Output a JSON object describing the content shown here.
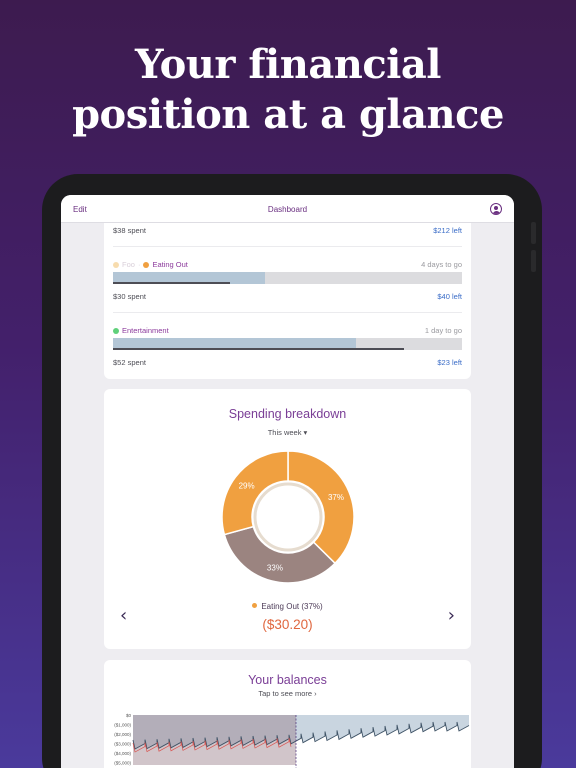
{
  "hero": {
    "line1": "Your financial",
    "line2": "position at a glance"
  },
  "navbar": {
    "edit_label": "Edit",
    "title": "Dashboard",
    "profile_icon": "user-circle-icon"
  },
  "budgets": [
    {
      "spent": "$38 spent",
      "left": "$212 left"
    },
    {
      "category_prev": "Foo",
      "category": "Eating Out",
      "color": "#f0a040",
      "prev_color": "#f7dcae",
      "days": "4 days to go",
      "spent_fraction": 0.435,
      "time_fraction": 0.335,
      "spent": "$30 spent",
      "left": "$40 left"
    },
    {
      "category": "Entertainment",
      "color": "#5fd07a",
      "days": "1 day to go",
      "spent_fraction": 0.695,
      "time_fraction": 0.835,
      "spent": "$52 spent",
      "left": "$23 left"
    }
  ],
  "spending": {
    "title": "Spending breakdown",
    "period": "This week ▾",
    "selected_label": "Eating Out (37%)",
    "selected_color": "#f0a040",
    "selected_amount": "($30.20)",
    "prev_icon": "chevron-left-icon",
    "next_icon": "chevron-right-icon"
  },
  "chart_data": {
    "type": "pie",
    "title": "Spending breakdown",
    "categories": [
      "Eating Out",
      "",
      ""
    ],
    "values": [
      37,
      33,
      29
    ],
    "labels": [
      "37%",
      "33%",
      "29%"
    ],
    "colors": [
      "#f0a040",
      "#9b8480",
      "#f0a040"
    ]
  },
  "balances": {
    "title": "Your balances",
    "subtitle": "Tap to see more ›",
    "y_ticks": [
      "$0",
      "($1,000)",
      "($2,000)",
      "($3,000)",
      "($4,000)",
      "($5,000)"
    ]
  }
}
